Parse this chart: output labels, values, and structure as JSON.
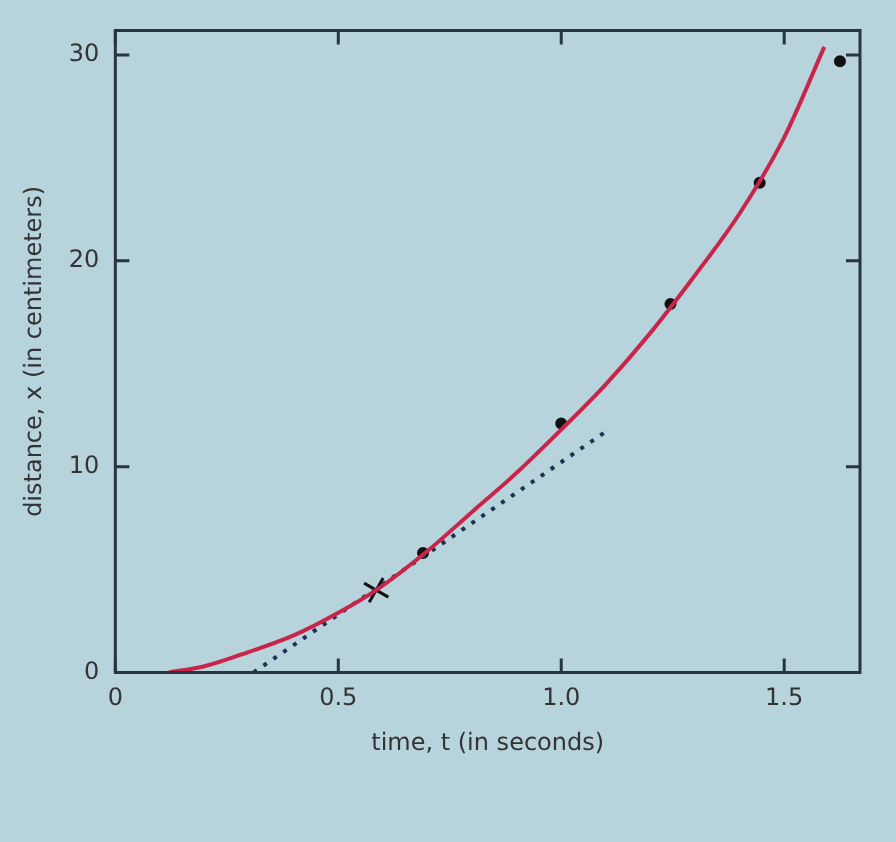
{
  "chart_data": {
    "type": "line",
    "xlabel": "time, t (in seconds)",
    "ylabel": "distance, x (in centimeters)",
    "xlim": [
      0,
      1.67
    ],
    "ylim": [
      0,
      31.2
    ],
    "xticks": [
      0,
      0.5,
      {
        "value": 1,
        "label": "1.0"
      },
      1.5
    ],
    "yticks": [
      0,
      10,
      20,
      30
    ],
    "tick_labels": "xy",
    "series": [
      {
        "type": "line",
        "color": "#c8254a",
        "marker": "none",
        "line_style": "solid",
        "x": [
          0.12,
          0.2,
          0.3,
          0.4,
          0.5,
          0.585,
          0.7,
          0.8,
          0.9,
          1.0,
          1.1,
          1.2,
          1.3,
          1.4,
          1.5,
          1.59
        ],
        "values": [
          0,
          0.3,
          1.0,
          1.8,
          2.9,
          4.0,
          5.9,
          7.8,
          9.7,
          11.8,
          14.0,
          16.5,
          19.3,
          22.3,
          26.0,
          30.4
        ]
      },
      {
        "type": "line",
        "color": "#1f3050",
        "marker": "none",
        "line_style": "dotted",
        "x": [
          0.31,
          1.1
        ],
        "values": [
          0,
          11.7
        ]
      },
      {
        "type": "scatter",
        "color": "#111111",
        "marker": "circle",
        "x": [
          0.69,
          1.0,
          1.245,
          1.445,
          1.625
        ],
        "values": [
          5.8,
          12.1,
          17.9,
          23.8,
          29.7
        ]
      },
      {
        "type": "scatter",
        "color": "#111111",
        "marker": "cross",
        "x": [
          0.585
        ],
        "values": [
          4.0
        ]
      }
    ]
  }
}
